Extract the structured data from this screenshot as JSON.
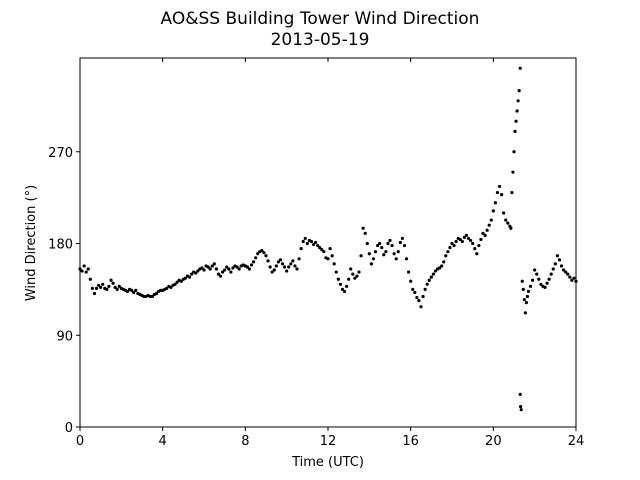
{
  "chart_data": {
    "type": "scatter",
    "title": "AO&SS Building Tower Wind Direction",
    "subtitle": "2013-05-19",
    "xlabel": "Time (UTC)",
    "ylabel": "Wind Direction (°)",
    "xlim": [
      0,
      24
    ],
    "ylim": [
      0,
      362
    ],
    "xticks": [
      0,
      4,
      8,
      12,
      16,
      20,
      24
    ],
    "xtick_labels": [
      "0",
      "4",
      "8",
      "12",
      "16",
      "20",
      "24"
    ],
    "yticks": [
      0,
      90,
      180,
      270
    ],
    "ytick_labels": [
      "0",
      "90",
      "180",
      "270"
    ],
    "grid": false,
    "marker_color": "#000000",
    "series": [
      {
        "points": [
          [
            0.0,
            155
          ],
          [
            0.1,
            153
          ],
          [
            0.2,
            158
          ],
          [
            0.3,
            152
          ],
          [
            0.4,
            155
          ],
          [
            0.5,
            145
          ],
          [
            0.6,
            136
          ],
          [
            0.7,
            131
          ],
          [
            0.8,
            136
          ],
          [
            0.9,
            139
          ],
          [
            1.0,
            137
          ],
          [
            1.1,
            140
          ],
          [
            1.2,
            136
          ],
          [
            1.3,
            135
          ],
          [
            1.4,
            138
          ],
          [
            1.5,
            144
          ],
          [
            1.6,
            141
          ],
          [
            1.7,
            137
          ],
          [
            1.8,
            135
          ],
          [
            1.9,
            138
          ],
          [
            2.0,
            136
          ],
          [
            2.1,
            135
          ],
          [
            2.2,
            134
          ],
          [
            2.3,
            133
          ],
          [
            2.4,
            135
          ],
          [
            2.5,
            134
          ],
          [
            2.6,
            132
          ],
          [
            2.7,
            134
          ],
          [
            2.8,
            131
          ],
          [
            2.9,
            130
          ],
          [
            3.0,
            129
          ],
          [
            3.1,
            128
          ],
          [
            3.2,
            128
          ],
          [
            3.3,
            129
          ],
          [
            3.4,
            128
          ],
          [
            3.5,
            128
          ],
          [
            3.6,
            130
          ],
          [
            3.7,
            131
          ],
          [
            3.8,
            133
          ],
          [
            3.9,
            134
          ],
          [
            4.0,
            134
          ],
          [
            4.1,
            135
          ],
          [
            4.2,
            136
          ],
          [
            4.3,
            138
          ],
          [
            4.4,
            137
          ],
          [
            4.5,
            139
          ],
          [
            4.6,
            140
          ],
          [
            4.7,
            142
          ],
          [
            4.8,
            144
          ],
          [
            4.9,
            143
          ],
          [
            5.0,
            145
          ],
          [
            5.1,
            146
          ],
          [
            5.2,
            148
          ],
          [
            5.3,
            147
          ],
          [
            5.4,
            150
          ],
          [
            5.5,
            152
          ],
          [
            5.6,
            151
          ],
          [
            5.7,
            153
          ],
          [
            5.8,
            155
          ],
          [
            5.9,
            156
          ],
          [
            6.0,
            154
          ],
          [
            6.1,
            158
          ],
          [
            6.2,
            157
          ],
          [
            6.3,
            155
          ],
          [
            6.4,
            158
          ],
          [
            6.5,
            160
          ],
          [
            6.6,
            155
          ],
          [
            6.7,
            150
          ],
          [
            6.8,
            148
          ],
          [
            6.9,
            152
          ],
          [
            7.0,
            154
          ],
          [
            7.1,
            157
          ],
          [
            7.2,
            155
          ],
          [
            7.3,
            152
          ],
          [
            7.4,
            156
          ],
          [
            7.5,
            158
          ],
          [
            7.6,
            157
          ],
          [
            7.7,
            155
          ],
          [
            7.8,
            158
          ],
          [
            7.9,
            159
          ],
          [
            8.0,
            158
          ],
          [
            8.1,
            157
          ],
          [
            8.2,
            155
          ],
          [
            8.3,
            159
          ],
          [
            8.4,
            162
          ],
          [
            8.5,
            166
          ],
          [
            8.6,
            170
          ],
          [
            8.7,
            172
          ],
          [
            8.8,
            173
          ],
          [
            8.9,
            171
          ],
          [
            9.0,
            168
          ],
          [
            9.1,
            163
          ],
          [
            9.2,
            157
          ],
          [
            9.3,
            152
          ],
          [
            9.4,
            154
          ],
          [
            9.5,
            158
          ],
          [
            9.6,
            162
          ],
          [
            9.7,
            164
          ],
          [
            9.8,
            160
          ],
          [
            9.9,
            157
          ],
          [
            10.0,
            153
          ],
          [
            10.1,
            157
          ],
          [
            10.2,
            160
          ],
          [
            10.3,
            163
          ],
          [
            10.4,
            158
          ],
          [
            10.5,
            155
          ],
          [
            10.6,
            165
          ],
          [
            10.7,
            175
          ],
          [
            10.8,
            182
          ],
          [
            10.9,
            185
          ],
          [
            11.0,
            180
          ],
          [
            11.1,
            183
          ],
          [
            11.2,
            182
          ],
          [
            11.3,
            179
          ],
          [
            11.4,
            181
          ],
          [
            11.5,
            178
          ],
          [
            11.6,
            176
          ],
          [
            11.7,
            174
          ],
          [
            11.8,
            172
          ],
          [
            11.9,
            166
          ],
          [
            12.0,
            165
          ],
          [
            12.1,
            175
          ],
          [
            12.2,
            168
          ],
          [
            12.3,
            160
          ],
          [
            12.4,
            152
          ],
          [
            12.5,
            145
          ],
          [
            12.6,
            140
          ],
          [
            12.7,
            135
          ],
          [
            12.8,
            133
          ],
          [
            12.9,
            138
          ],
          [
            13.0,
            145
          ],
          [
            13.1,
            155
          ],
          [
            13.2,
            150
          ],
          [
            13.3,
            146
          ],
          [
            13.4,
            148
          ],
          [
            13.5,
            152
          ],
          [
            13.6,
            168
          ],
          [
            13.7,
            195
          ],
          [
            13.8,
            190
          ],
          [
            13.9,
            180
          ],
          [
            14.0,
            170
          ],
          [
            14.1,
            160
          ],
          [
            14.2,
            165
          ],
          [
            14.3,
            172
          ],
          [
            14.4,
            178
          ],
          [
            14.5,
            180
          ],
          [
            14.6,
            176
          ],
          [
            14.7,
            169
          ],
          [
            14.8,
            172
          ],
          [
            14.9,
            180
          ],
          [
            15.0,
            183
          ],
          [
            15.1,
            178
          ],
          [
            15.2,
            170
          ],
          [
            15.3,
            165
          ],
          [
            15.4,
            172
          ],
          [
            15.5,
            181
          ],
          [
            15.6,
            185
          ],
          [
            15.7,
            178
          ],
          [
            15.8,
            165
          ],
          [
            15.9,
            152
          ],
          [
            16.0,
            143
          ],
          [
            16.1,
            135
          ],
          [
            16.2,
            132
          ],
          [
            16.3,
            127
          ],
          [
            16.4,
            124
          ],
          [
            16.5,
            118
          ],
          [
            16.6,
            128
          ],
          [
            16.7,
            135
          ],
          [
            16.8,
            140
          ],
          [
            16.9,
            144
          ],
          [
            17.0,
            147
          ],
          [
            17.1,
            150
          ],
          [
            17.2,
            153
          ],
          [
            17.3,
            155
          ],
          [
            17.4,
            156
          ],
          [
            17.5,
            158
          ],
          [
            17.6,
            162
          ],
          [
            17.7,
            168
          ],
          [
            17.8,
            172
          ],
          [
            17.9,
            176
          ],
          [
            18.0,
            180
          ],
          [
            18.1,
            178
          ],
          [
            18.2,
            182
          ],
          [
            18.3,
            185
          ],
          [
            18.4,
            184
          ],
          [
            18.5,
            182
          ],
          [
            18.6,
            186
          ],
          [
            18.7,
            188
          ],
          [
            18.8,
            185
          ],
          [
            18.9,
            183
          ],
          [
            19.0,
            180
          ],
          [
            19.1,
            175
          ],
          [
            19.2,
            170
          ],
          [
            19.3,
            178
          ],
          [
            19.4,
            184
          ],
          [
            19.5,
            190
          ],
          [
            19.6,
            188
          ],
          [
            19.7,
            193
          ],
          [
            19.8,
            198
          ],
          [
            19.9,
            203
          ],
          [
            20.0,
            212
          ],
          [
            20.1,
            220
          ],
          [
            20.2,
            230
          ],
          [
            20.3,
            236
          ],
          [
            20.4,
            228
          ],
          [
            20.5,
            210
          ],
          [
            20.6,
            203
          ],
          [
            20.7,
            200
          ],
          [
            20.8,
            197
          ],
          [
            20.85,
            195
          ],
          [
            20.9,
            230
          ],
          [
            20.95,
            250
          ],
          [
            21.0,
            270
          ],
          [
            21.05,
            290
          ],
          [
            21.1,
            300
          ],
          [
            21.15,
            310
          ],
          [
            21.2,
            320
          ],
          [
            21.25,
            330
          ],
          [
            21.3,
            352
          ],
          [
            21.3,
            32
          ],
          [
            21.32,
            20
          ],
          [
            21.35,
            17
          ],
          [
            21.4,
            143
          ],
          [
            21.45,
            135
          ],
          [
            21.5,
            125
          ],
          [
            21.55,
            112
          ],
          [
            21.6,
            122
          ],
          [
            21.65,
            128
          ],
          [
            21.7,
            133
          ],
          [
            21.8,
            138
          ],
          [
            21.9,
            144
          ],
          [
            22.0,
            154
          ],
          [
            22.1,
            150
          ],
          [
            22.2,
            145
          ],
          [
            22.3,
            140
          ],
          [
            22.4,
            138
          ],
          [
            22.5,
            137
          ],
          [
            22.6,
            141
          ],
          [
            22.7,
            145
          ],
          [
            22.8,
            150
          ],
          [
            22.9,
            155
          ],
          [
            23.0,
            160
          ],
          [
            23.1,
            168
          ],
          [
            23.2,
            164
          ],
          [
            23.3,
            158
          ],
          [
            23.4,
            154
          ],
          [
            23.5,
            152
          ],
          [
            23.6,
            150
          ],
          [
            23.7,
            147
          ],
          [
            23.8,
            144
          ],
          [
            23.9,
            146
          ],
          [
            24.0,
            143
          ]
        ]
      }
    ]
  }
}
